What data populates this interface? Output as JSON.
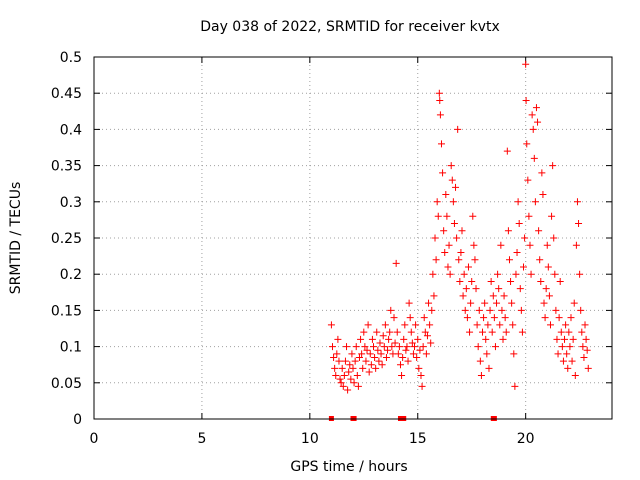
{
  "chart_data": {
    "type": "scatter",
    "title": "Day 038 of 2022, SRMTID for receiver kvtx",
    "xlabel": "GPS time / hours",
    "ylabel": "SRMTID / TECUs",
    "xlim": [
      0,
      24
    ],
    "ylim": [
      0,
      0.5
    ],
    "xticks": [
      0,
      5,
      10,
      15,
      20
    ],
    "xtick_labels": [
      "0",
      "5",
      "10",
      "15",
      "20"
    ],
    "yticks": [
      0,
      0.05,
      0.1,
      0.15,
      0.2,
      0.25,
      0.3,
      0.35,
      0.4,
      0.45,
      0.5
    ],
    "ytick_labels": [
      "0",
      "0.05",
      "0.1",
      "0.15",
      "0.2",
      "0.25",
      "0.3",
      "0.35",
      "0.4",
      "0.45",
      "0.5"
    ],
    "grid": true,
    "marker": "+",
    "color": "#ff0000",
    "zero_markers_x": [
      11.0,
      12.0,
      12.05,
      14.2,
      14.35,
      18.5,
      18.55
    ],
    "series": [
      {
        "name": "SRMTID",
        "points": [
          [
            11.0,
            0.13
          ],
          [
            11.05,
            0.1
          ],
          [
            11.1,
            0.085
          ],
          [
            11.15,
            0.07
          ],
          [
            11.2,
            0.06
          ],
          [
            11.25,
            0.09
          ],
          [
            11.3,
            0.11
          ],
          [
            11.35,
            0.08
          ],
          [
            11.4,
            0.055
          ],
          [
            11.45,
            0.05
          ],
          [
            11.5,
            0.07
          ],
          [
            11.55,
            0.045
          ],
          [
            11.6,
            0.06
          ],
          [
            11.65,
            0.08
          ],
          [
            11.7,
            0.1
          ],
          [
            11.75,
            0.04
          ],
          [
            11.8,
            0.065
          ],
          [
            11.85,
            0.075
          ],
          [
            11.9,
            0.055
          ],
          [
            11.95,
            0.09
          ],
          [
            12.0,
            0.07
          ],
          [
            12.05,
            0.05
          ],
          [
            12.1,
            0.08
          ],
          [
            12.15,
            0.1
          ],
          [
            12.2,
            0.06
          ],
          [
            12.25,
            0.045
          ],
          [
            12.3,
            0.085
          ],
          [
            12.35,
            0.11
          ],
          [
            12.4,
            0.09
          ],
          [
            12.45,
            0.07
          ],
          [
            12.5,
            0.12
          ],
          [
            12.55,
            0.1
          ],
          [
            12.6,
            0.08
          ],
          [
            12.65,
            0.095
          ],
          [
            12.7,
            0.13
          ],
          [
            12.75,
            0.065
          ],
          [
            12.8,
            0.09
          ],
          [
            12.85,
            0.075
          ],
          [
            12.9,
            0.11
          ],
          [
            12.95,
            0.1
          ],
          [
            13.0,
            0.085
          ],
          [
            13.05,
            0.07
          ],
          [
            13.1,
            0.12
          ],
          [
            13.15,
            0.095
          ],
          [
            13.2,
            0.08
          ],
          [
            13.25,
            0.105
          ],
          [
            13.3,
            0.09
          ],
          [
            13.35,
            0.075
          ],
          [
            13.4,
            0.115
          ],
          [
            13.45,
            0.1
          ],
          [
            13.5,
            0.13
          ],
          [
            13.55,
            0.085
          ],
          [
            13.6,
            0.095
          ],
          [
            13.65,
            0.11
          ],
          [
            13.7,
            0.12
          ],
          [
            13.75,
            0.15
          ],
          [
            13.8,
            0.1
          ],
          [
            13.85,
            0.09
          ],
          [
            13.9,
            0.14
          ],
          [
            13.95,
            0.105
          ],
          [
            14.0,
            0.215
          ],
          [
            14.05,
            0.12
          ],
          [
            14.1,
            0.09
          ],
          [
            14.15,
            0.1
          ],
          [
            14.2,
            0.075
          ],
          [
            14.25,
            0.06
          ],
          [
            14.3,
            0.085
          ],
          [
            14.35,
            0.11
          ],
          [
            14.4,
            0.13
          ],
          [
            14.45,
            0.095
          ],
          [
            14.5,
            0.1
          ],
          [
            14.55,
            0.08
          ],
          [
            14.6,
            0.16
          ],
          [
            14.65,
            0.14
          ],
          [
            14.7,
            0.12
          ],
          [
            14.75,
            0.105
          ],
          [
            14.8,
            0.09
          ],
          [
            14.85,
            0.1
          ],
          [
            14.9,
            0.13
          ],
          [
            14.95,
            0.085
          ],
          [
            15.0,
            0.11
          ],
          [
            15.05,
            0.07
          ],
          [
            15.1,
            0.095
          ],
          [
            15.15,
            0.06
          ],
          [
            15.2,
            0.045
          ],
          [
            15.25,
            0.1
          ],
          [
            15.3,
            0.14
          ],
          [
            15.35,
            0.12
          ],
          [
            15.4,
            0.09
          ],
          [
            15.45,
            0.115
          ],
          [
            15.5,
            0.16
          ],
          [
            15.55,
            0.13
          ],
          [
            15.6,
            0.105
          ],
          [
            15.65,
            0.15
          ],
          [
            15.7,
            0.2
          ],
          [
            15.75,
            0.17
          ],
          [
            15.8,
            0.25
          ],
          [
            15.85,
            0.22
          ],
          [
            15.9,
            0.3
          ],
          [
            15.95,
            0.28
          ],
          [
            16.0,
            0.45
          ],
          [
            16.02,
            0.44
          ],
          [
            16.05,
            0.42
          ],
          [
            16.1,
            0.38
          ],
          [
            16.15,
            0.34
          ],
          [
            16.2,
            0.26
          ],
          [
            16.25,
            0.23
          ],
          [
            16.3,
            0.31
          ],
          [
            16.35,
            0.28
          ],
          [
            16.4,
            0.21
          ],
          [
            16.45,
            0.24
          ],
          [
            16.5,
            0.2
          ],
          [
            16.55,
            0.35
          ],
          [
            16.6,
            0.33
          ],
          [
            16.65,
            0.3
          ],
          [
            16.7,
            0.27
          ],
          [
            16.75,
            0.32
          ],
          [
            16.8,
            0.25
          ],
          [
            16.85,
            0.4
          ],
          [
            16.9,
            0.22
          ],
          [
            16.95,
            0.19
          ],
          [
            17.0,
            0.23
          ],
          [
            17.05,
            0.26
          ],
          [
            17.1,
            0.17
          ],
          [
            17.15,
            0.2
          ],
          [
            17.2,
            0.15
          ],
          [
            17.25,
            0.18
          ],
          [
            17.3,
            0.14
          ],
          [
            17.35,
            0.21
          ],
          [
            17.4,
            0.12
          ],
          [
            17.45,
            0.16
          ],
          [
            17.5,
            0.19
          ],
          [
            17.55,
            0.28
          ],
          [
            17.6,
            0.24
          ],
          [
            17.65,
            0.22
          ],
          [
            17.7,
            0.18
          ],
          [
            17.75,
            0.13
          ],
          [
            17.8,
            0.1
          ],
          [
            17.85,
            0.15
          ],
          [
            17.9,
            0.08
          ],
          [
            17.95,
            0.06
          ],
          [
            18.0,
            0.12
          ],
          [
            18.05,
            0.14
          ],
          [
            18.1,
            0.16
          ],
          [
            18.15,
            0.11
          ],
          [
            18.2,
            0.09
          ],
          [
            18.25,
            0.13
          ],
          [
            18.3,
            0.07
          ],
          [
            18.35,
            0.15
          ],
          [
            18.4,
            0.19
          ],
          [
            18.45,
            0.12
          ],
          [
            18.5,
            0.17
          ],
          [
            18.55,
            0.14
          ],
          [
            18.6,
            0.1
          ],
          [
            18.65,
            0.16
          ],
          [
            18.7,
            0.2
          ],
          [
            18.75,
            0.18
          ],
          [
            18.8,
            0.13
          ],
          [
            18.85,
            0.24
          ],
          [
            18.9,
            0.15
          ],
          [
            18.95,
            0.11
          ],
          [
            19.0,
            0.17
          ],
          [
            19.05,
            0.14
          ],
          [
            19.1,
            0.12
          ],
          [
            19.15,
            0.37
          ],
          [
            19.2,
            0.26
          ],
          [
            19.25,
            0.22
          ],
          [
            19.3,
            0.19
          ],
          [
            19.35,
            0.16
          ],
          [
            19.4,
            0.13
          ],
          [
            19.45,
            0.09
          ],
          [
            19.5,
            0.045
          ],
          [
            19.55,
            0.2
          ],
          [
            19.6,
            0.23
          ],
          [
            19.65,
            0.3
          ],
          [
            19.7,
            0.27
          ],
          [
            19.75,
            0.18
          ],
          [
            19.8,
            0.15
          ],
          [
            19.85,
            0.12
          ],
          [
            19.9,
            0.21
          ],
          [
            19.95,
            0.25
          ],
          [
            20.0,
            0.49
          ],
          [
            20.02,
            0.44
          ],
          [
            20.05,
            0.38
          ],
          [
            20.1,
            0.33
          ],
          [
            20.15,
            0.28
          ],
          [
            20.2,
            0.24
          ],
          [
            20.25,
            0.2
          ],
          [
            20.3,
            0.42
          ],
          [
            20.35,
            0.4
          ],
          [
            20.4,
            0.36
          ],
          [
            20.45,
            0.3
          ],
          [
            20.5,
            0.43
          ],
          [
            20.55,
            0.41
          ],
          [
            20.6,
            0.26
          ],
          [
            20.65,
            0.22
          ],
          [
            20.7,
            0.19
          ],
          [
            20.75,
            0.34
          ],
          [
            20.8,
            0.31
          ],
          [
            20.85,
            0.16
          ],
          [
            20.9,
            0.14
          ],
          [
            20.95,
            0.18
          ],
          [
            21.0,
            0.24
          ],
          [
            21.05,
            0.21
          ],
          [
            21.1,
            0.17
          ],
          [
            21.15,
            0.13
          ],
          [
            21.2,
            0.28
          ],
          [
            21.25,
            0.35
          ],
          [
            21.3,
            0.25
          ],
          [
            21.35,
            0.2
          ],
          [
            21.4,
            0.15
          ],
          [
            21.45,
            0.11
          ],
          [
            21.5,
            0.09
          ],
          [
            21.55,
            0.14
          ],
          [
            21.6,
            0.19
          ],
          [
            21.65,
            0.12
          ],
          [
            21.7,
            0.1
          ],
          [
            21.75,
            0.08
          ],
          [
            21.8,
            0.11
          ],
          [
            21.85,
            0.13
          ],
          [
            21.9,
            0.09
          ],
          [
            21.95,
            0.07
          ],
          [
            22.0,
            0.12
          ],
          [
            22.05,
            0.1
          ],
          [
            22.1,
            0.14
          ],
          [
            22.15,
            0.08
          ],
          [
            22.2,
            0.11
          ],
          [
            22.25,
            0.16
          ],
          [
            22.3,
            0.06
          ],
          [
            22.35,
            0.24
          ],
          [
            22.4,
            0.3
          ],
          [
            22.45,
            0.27
          ],
          [
            22.5,
            0.2
          ],
          [
            22.55,
            0.15
          ],
          [
            22.6,
            0.12
          ],
          [
            22.65,
            0.1
          ],
          [
            22.7,
            0.085
          ],
          [
            22.75,
            0.13
          ],
          [
            22.8,
            0.11
          ],
          [
            22.85,
            0.095
          ],
          [
            22.9,
            0.07
          ]
        ]
      }
    ]
  }
}
